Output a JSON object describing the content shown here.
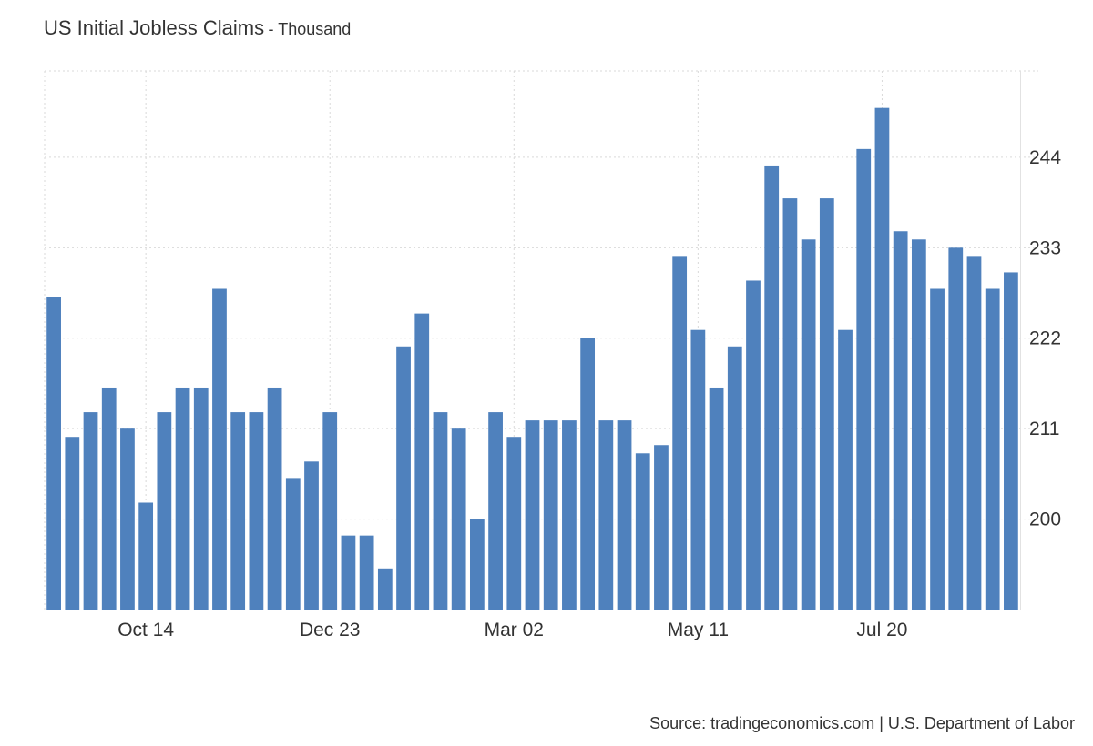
{
  "chart_data": {
    "type": "bar",
    "title": "US Initial Jobless Claims",
    "subtitle": "- Thousand",
    "source": "Source: tradingeconomics.com | U.S. Department of Labor",
    "bar_color": "#4f81bd",
    "grid": true,
    "y_axis_position": "right",
    "yticks": [
      200,
      211,
      222,
      233,
      244
    ],
    "ylim": [
      189,
      254.5
    ],
    "xtick_labels": [
      {
        "label": "Oct 14",
        "index": 5
      },
      {
        "label": "Dec 23",
        "index": 15
      },
      {
        "label": "Mar 02",
        "index": 25
      },
      {
        "label": "May 11",
        "index": 35
      },
      {
        "label": "Jul 20",
        "index": 45
      }
    ],
    "values": [
      227,
      210,
      213,
      216,
      211,
      202,
      213,
      216,
      216,
      228,
      213,
      213,
      216,
      205,
      207,
      213,
      198,
      198,
      194,
      221,
      225,
      213,
      211,
      200,
      213,
      210,
      212,
      212,
      212,
      222,
      212,
      212,
      208,
      209,
      232,
      223,
      216,
      221,
      229,
      243,
      239,
      234,
      239,
      223,
      245,
      250,
      235,
      234,
      228,
      233,
      232,
      228,
      230
    ]
  }
}
